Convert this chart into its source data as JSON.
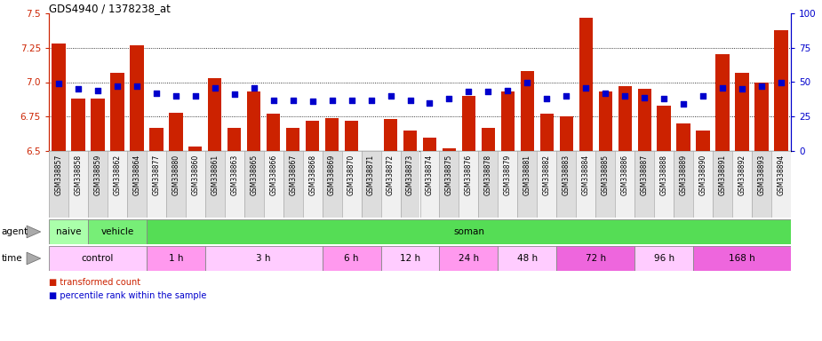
{
  "title": "GDS4940 / 1378238_at",
  "samples": [
    "GSM338857",
    "GSM338858",
    "GSM338859",
    "GSM338862",
    "GSM338864",
    "GSM338877",
    "GSM338880",
    "GSM338860",
    "GSM338861",
    "GSM338863",
    "GSM338865",
    "GSM338866",
    "GSM338867",
    "GSM338868",
    "GSM338869",
    "GSM338870",
    "GSM338871",
    "GSM338872",
    "GSM338873",
    "GSM338874",
    "GSM338875",
    "GSM338876",
    "GSM338878",
    "GSM338879",
    "GSM338881",
    "GSM338882",
    "GSM338883",
    "GSM338884",
    "GSM338885",
    "GSM338886",
    "GSM338887",
    "GSM338888",
    "GSM338889",
    "GSM338890",
    "GSM338891",
    "GSM338892",
    "GSM338893",
    "GSM338894"
  ],
  "red_values": [
    7.28,
    6.88,
    6.88,
    7.07,
    7.27,
    6.67,
    6.78,
    6.53,
    7.03,
    6.67,
    6.93,
    6.77,
    6.67,
    6.72,
    6.74,
    6.72,
    6.5,
    6.73,
    6.65,
    6.6,
    6.52,
    6.9,
    6.67,
    6.93,
    7.08,
    6.77,
    6.75,
    7.47,
    6.93,
    6.97,
    6.95,
    6.83,
    6.7,
    6.65,
    7.2,
    7.07,
    7.0,
    7.38
  ],
  "blue_values": [
    49,
    45,
    44,
    47,
    47,
    42,
    40,
    40,
    46,
    41,
    46,
    37,
    37,
    36,
    37,
    37,
    37,
    40,
    37,
    35,
    38,
    43,
    43,
    44,
    50,
    38,
    40,
    46,
    42,
    40,
    39,
    38,
    34,
    40,
    46,
    45,
    47,
    50
  ],
  "y_min": 6.5,
  "y_max": 7.5,
  "y_ticks": [
    6.5,
    6.75,
    7.0,
    7.25,
    7.5
  ],
  "right_y_ticks": [
    0,
    25,
    50,
    75,
    100
  ],
  "bar_color": "#CC2200",
  "dot_color": "#0000CC",
  "agent_groups": [
    {
      "label": "naive",
      "start": 0,
      "end": 2,
      "color": "#AAFFAA"
    },
    {
      "label": "vehicle",
      "start": 2,
      "end": 5,
      "color": "#77EE77"
    },
    {
      "label": "soman",
      "start": 5,
      "end": 38,
      "color": "#55DD55"
    }
  ],
  "time_groups": [
    {
      "label": "control",
      "start": 0,
      "end": 5,
      "color": "#FFCCFF"
    },
    {
      "label": "1 h",
      "start": 5,
      "end": 8,
      "color": "#FF99EE"
    },
    {
      "label": "3 h",
      "start": 8,
      "end": 14,
      "color": "#FFCCFF"
    },
    {
      "label": "6 h",
      "start": 14,
      "end": 17,
      "color": "#FF99EE"
    },
    {
      "label": "12 h",
      "start": 17,
      "end": 20,
      "color": "#FFCCFF"
    },
    {
      "label": "24 h",
      "start": 20,
      "end": 23,
      "color": "#FF99EE"
    },
    {
      "label": "48 h",
      "start": 23,
      "end": 26,
      "color": "#FFCCFF"
    },
    {
      "label": "72 h",
      "start": 26,
      "end": 30,
      "color": "#EE66DD"
    },
    {
      "label": "96 h",
      "start": 30,
      "end": 33,
      "color": "#FFCCFF"
    },
    {
      "label": "168 h",
      "start": 33,
      "end": 38,
      "color": "#EE66DD"
    }
  ]
}
